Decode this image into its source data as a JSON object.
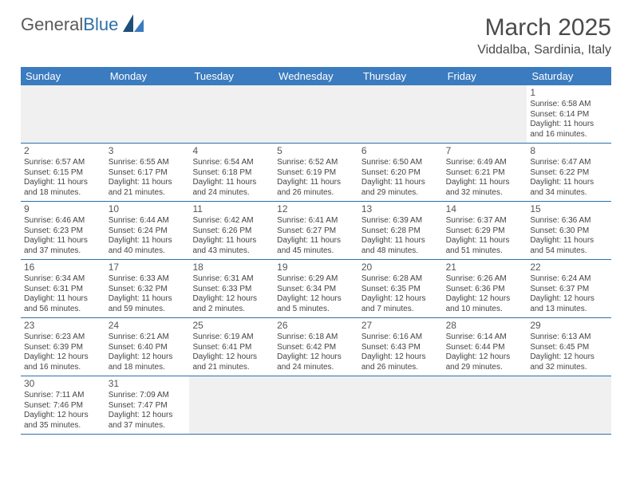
{
  "logo": {
    "text_a": "General",
    "text_b": "Blue",
    "color_a": "#5a5a5a",
    "color_b": "#2f6fa7"
  },
  "title": "March 2025",
  "location": "Viddalba, Sardinia, Italy",
  "colors": {
    "header_bg": "#3b7bbf",
    "header_fg": "#ffffff",
    "rule": "#2f6fa7",
    "empty_bg": "#f0f0f0",
    "text": "#444444",
    "title": "#4a4a4a"
  },
  "typography": {
    "month_title_size_pt": 22,
    "location_size_pt": 12,
    "day_header_size_pt": 10,
    "cell_size_pt": 7.5,
    "daynum_size_pt": 9
  },
  "day_names": [
    "Sunday",
    "Monday",
    "Tuesday",
    "Wednesday",
    "Thursday",
    "Friday",
    "Saturday"
  ],
  "weeks": [
    [
      null,
      null,
      null,
      null,
      null,
      null,
      {
        "n": "1",
        "sr": "Sunrise: 6:58 AM",
        "ss": "Sunset: 6:14 PM",
        "dl": "Daylight: 11 hours and 16 minutes."
      }
    ],
    [
      {
        "n": "2",
        "sr": "Sunrise: 6:57 AM",
        "ss": "Sunset: 6:15 PM",
        "dl": "Daylight: 11 hours and 18 minutes."
      },
      {
        "n": "3",
        "sr": "Sunrise: 6:55 AM",
        "ss": "Sunset: 6:17 PM",
        "dl": "Daylight: 11 hours and 21 minutes."
      },
      {
        "n": "4",
        "sr": "Sunrise: 6:54 AM",
        "ss": "Sunset: 6:18 PM",
        "dl": "Daylight: 11 hours and 24 minutes."
      },
      {
        "n": "5",
        "sr": "Sunrise: 6:52 AM",
        "ss": "Sunset: 6:19 PM",
        "dl": "Daylight: 11 hours and 26 minutes."
      },
      {
        "n": "6",
        "sr": "Sunrise: 6:50 AM",
        "ss": "Sunset: 6:20 PM",
        "dl": "Daylight: 11 hours and 29 minutes."
      },
      {
        "n": "7",
        "sr": "Sunrise: 6:49 AM",
        "ss": "Sunset: 6:21 PM",
        "dl": "Daylight: 11 hours and 32 minutes."
      },
      {
        "n": "8",
        "sr": "Sunrise: 6:47 AM",
        "ss": "Sunset: 6:22 PM",
        "dl": "Daylight: 11 hours and 34 minutes."
      }
    ],
    [
      {
        "n": "9",
        "sr": "Sunrise: 6:46 AM",
        "ss": "Sunset: 6:23 PM",
        "dl": "Daylight: 11 hours and 37 minutes."
      },
      {
        "n": "10",
        "sr": "Sunrise: 6:44 AM",
        "ss": "Sunset: 6:24 PM",
        "dl": "Daylight: 11 hours and 40 minutes."
      },
      {
        "n": "11",
        "sr": "Sunrise: 6:42 AM",
        "ss": "Sunset: 6:26 PM",
        "dl": "Daylight: 11 hours and 43 minutes."
      },
      {
        "n": "12",
        "sr": "Sunrise: 6:41 AM",
        "ss": "Sunset: 6:27 PM",
        "dl": "Daylight: 11 hours and 45 minutes."
      },
      {
        "n": "13",
        "sr": "Sunrise: 6:39 AM",
        "ss": "Sunset: 6:28 PM",
        "dl": "Daylight: 11 hours and 48 minutes."
      },
      {
        "n": "14",
        "sr": "Sunrise: 6:37 AM",
        "ss": "Sunset: 6:29 PM",
        "dl": "Daylight: 11 hours and 51 minutes."
      },
      {
        "n": "15",
        "sr": "Sunrise: 6:36 AM",
        "ss": "Sunset: 6:30 PM",
        "dl": "Daylight: 11 hours and 54 minutes."
      }
    ],
    [
      {
        "n": "16",
        "sr": "Sunrise: 6:34 AM",
        "ss": "Sunset: 6:31 PM",
        "dl": "Daylight: 11 hours and 56 minutes."
      },
      {
        "n": "17",
        "sr": "Sunrise: 6:33 AM",
        "ss": "Sunset: 6:32 PM",
        "dl": "Daylight: 11 hours and 59 minutes."
      },
      {
        "n": "18",
        "sr": "Sunrise: 6:31 AM",
        "ss": "Sunset: 6:33 PM",
        "dl": "Daylight: 12 hours and 2 minutes."
      },
      {
        "n": "19",
        "sr": "Sunrise: 6:29 AM",
        "ss": "Sunset: 6:34 PM",
        "dl": "Daylight: 12 hours and 5 minutes."
      },
      {
        "n": "20",
        "sr": "Sunrise: 6:28 AM",
        "ss": "Sunset: 6:35 PM",
        "dl": "Daylight: 12 hours and 7 minutes."
      },
      {
        "n": "21",
        "sr": "Sunrise: 6:26 AM",
        "ss": "Sunset: 6:36 PM",
        "dl": "Daylight: 12 hours and 10 minutes."
      },
      {
        "n": "22",
        "sr": "Sunrise: 6:24 AM",
        "ss": "Sunset: 6:37 PM",
        "dl": "Daylight: 12 hours and 13 minutes."
      }
    ],
    [
      {
        "n": "23",
        "sr": "Sunrise: 6:23 AM",
        "ss": "Sunset: 6:39 PM",
        "dl": "Daylight: 12 hours and 16 minutes."
      },
      {
        "n": "24",
        "sr": "Sunrise: 6:21 AM",
        "ss": "Sunset: 6:40 PM",
        "dl": "Daylight: 12 hours and 18 minutes."
      },
      {
        "n": "25",
        "sr": "Sunrise: 6:19 AM",
        "ss": "Sunset: 6:41 PM",
        "dl": "Daylight: 12 hours and 21 minutes."
      },
      {
        "n": "26",
        "sr": "Sunrise: 6:18 AM",
        "ss": "Sunset: 6:42 PM",
        "dl": "Daylight: 12 hours and 24 minutes."
      },
      {
        "n": "27",
        "sr": "Sunrise: 6:16 AM",
        "ss": "Sunset: 6:43 PM",
        "dl": "Daylight: 12 hours and 26 minutes."
      },
      {
        "n": "28",
        "sr": "Sunrise: 6:14 AM",
        "ss": "Sunset: 6:44 PM",
        "dl": "Daylight: 12 hours and 29 minutes."
      },
      {
        "n": "29",
        "sr": "Sunrise: 6:13 AM",
        "ss": "Sunset: 6:45 PM",
        "dl": "Daylight: 12 hours and 32 minutes."
      }
    ],
    [
      {
        "n": "30",
        "sr": "Sunrise: 7:11 AM",
        "ss": "Sunset: 7:46 PM",
        "dl": "Daylight: 12 hours and 35 minutes."
      },
      {
        "n": "31",
        "sr": "Sunrise: 7:09 AM",
        "ss": "Sunset: 7:47 PM",
        "dl": "Daylight: 12 hours and 37 minutes."
      },
      null,
      null,
      null,
      null,
      null
    ]
  ]
}
